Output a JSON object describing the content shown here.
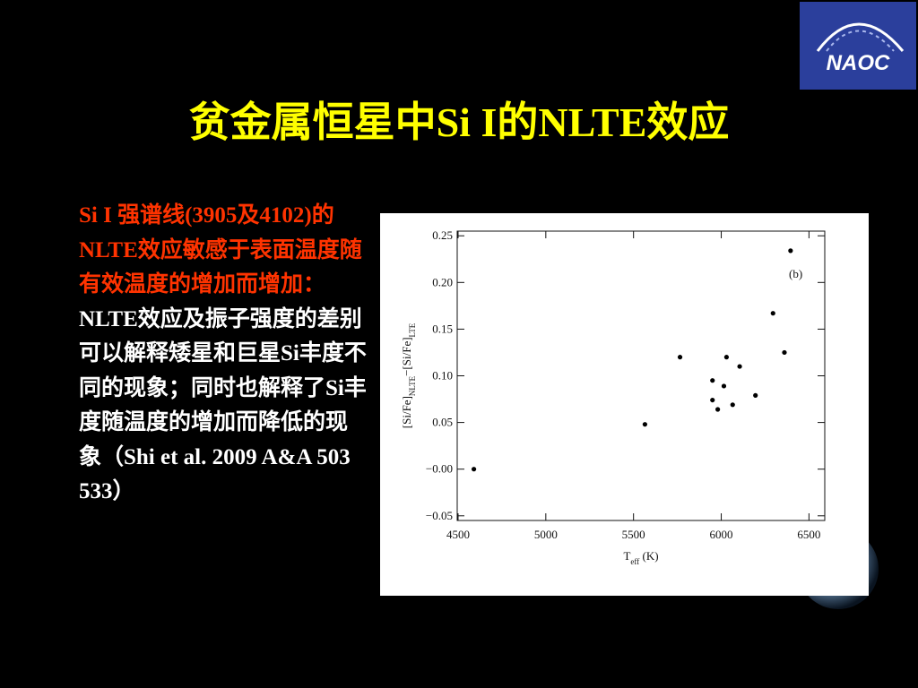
{
  "title": "贫金属恒星中Si I的NLTE效应",
  "logo": "NAOC",
  "body": {
    "highlight": "Si I 强谱线(3905及4102)的NLTE效应敏感于表面温度随有效温度的增加而增加：",
    "text": "NLTE效应及振子强度的差别可以解释矮星和巨星Si丰度不同的现象；同时也解释了Si丰度随温度的增加而降低的现象（Shi et al. 2009 A&A 503 533）"
  },
  "chart_data": {
    "type": "scatter",
    "color": "#000000",
    "annotation": "(b)",
    "xlabel_parts": [
      {
        "text": "T"
      },
      {
        "text": "eff",
        "sub": true
      },
      {
        "text": " (K)"
      }
    ],
    "ylabel_parts": [
      {
        "text": "[Si/Fe]"
      },
      {
        "text": "NLTE",
        "sub": true
      },
      {
        "text": "−[Si/Fe]"
      },
      {
        "text": "LTE",
        "sub": true
      }
    ],
    "x": [
      4590,
      5565,
      5765,
      5950,
      5950,
      5980,
      6015,
      6030,
      6065,
      6105,
      6195,
      6295,
      6360,
      6395
    ],
    "values": [
      0.0,
      0.048,
      0.12,
      0.095,
      0.074,
      0.064,
      0.089,
      0.12,
      0.069,
      0.11,
      0.079,
      0.167,
      0.125,
      0.234
    ],
    "xlim": [
      4495,
      6590
    ],
    "ylim": [
      -0.055,
      0.255
    ],
    "xticks": [
      4500,
      5000,
      5500,
      6000,
      6500
    ],
    "yticks": [
      {
        "value": 0.25,
        "label": "0.25"
      },
      {
        "value": 0.2,
        "label": "0.20"
      },
      {
        "value": 0.15,
        "label": "0.15"
      },
      {
        "value": 0.1,
        "label": "0.10"
      },
      {
        "value": 0.05,
        "label": "0.05"
      },
      {
        "value": 0,
        "label": "−0.00"
      },
      {
        "value": -0.05,
        "label": "−0.05"
      }
    ]
  }
}
